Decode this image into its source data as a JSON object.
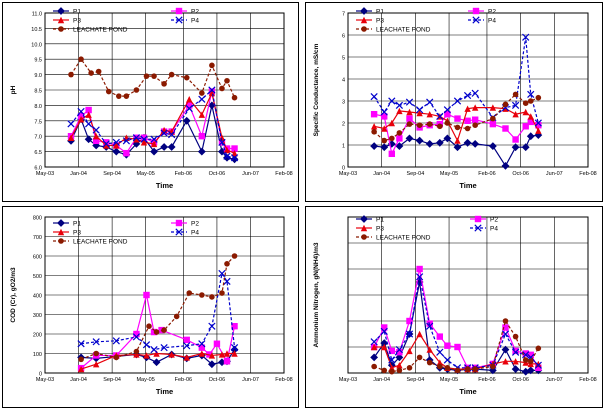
{
  "chart_data": [
    {
      "type": "line",
      "ylabel": "pH",
      "xlabel": "Time",
      "ylim": [
        6.0,
        11.0
      ],
      "yticks": [
        "6.0",
        "6.5",
        "7.0",
        "7.5",
        "8.0",
        "8.5",
        "9.0",
        "9.5",
        "10.0",
        "10.5",
        "11.0"
      ],
      "xticks": [
        "May-03",
        "Jan-04",
        "Sep-04",
        "May-05",
        "Feb-06",
        "Oct-06",
        "Jun-07",
        "Feb-08"
      ],
      "legend": [
        "P1",
        "P2",
        "P3",
        "P4",
        "LEACHATE POND"
      ],
      "series": [
        {
          "name": "P1",
          "color": "#000080",
          "marker": "diamond",
          "line": "solid",
          "x": [
            2003.85,
            2004.05,
            2004.2,
            2004.35,
            2004.55,
            2004.75,
            2004.95,
            2005.15,
            2005.3,
            2005.5,
            2005.7,
            2005.85,
            2006.15,
            2006.45,
            2006.65,
            2006.85,
            2006.95,
            2007.1
          ],
          "y": [
            6.85,
            7.55,
            6.9,
            6.7,
            6.65,
            6.5,
            6.4,
            6.75,
            6.95,
            6.5,
            6.65,
            6.65,
            7.5,
            6.5,
            8.0,
            6.5,
            6.3,
            6.25
          ]
        },
        {
          "name": "P2",
          "color": "#ff00ff",
          "marker": "square",
          "line": "solid",
          "x": [
            2003.85,
            2004.05,
            2004.2,
            2004.35,
            2004.55,
            2004.75,
            2004.95,
            2005.15,
            2005.3,
            2005.5,
            2005.7,
            2005.85,
            2006.2,
            2006.45,
            2006.65,
            2006.85,
            2006.95,
            2007.1
          ],
          "y": [
            7.0,
            7.65,
            7.85,
            6.85,
            6.8,
            6.7,
            6.45,
            6.95,
            6.95,
            6.8,
            7.15,
            7.15,
            8.0,
            7.0,
            8.45,
            6.8,
            6.6,
            6.6
          ]
        },
        {
          "name": "P3",
          "color": "#e8000b",
          "marker": "triangle",
          "line": "solid",
          "x": [
            2003.85,
            2004.05,
            2004.2,
            2004.35,
            2004.55,
            2004.75,
            2004.95,
            2005.15,
            2005.3,
            2005.5,
            2005.7,
            2005.85,
            2006.2,
            2006.45,
            2006.65,
            2006.85,
            2006.95,
            2007.1
          ],
          "y": [
            6.95,
            7.55,
            7.7,
            7.0,
            6.7,
            6.7,
            6.95,
            6.9,
            6.8,
            6.75,
            7.2,
            7.15,
            8.2,
            7.7,
            8.4,
            6.95,
            6.55,
            6.45
          ]
        },
        {
          "name": "P4",
          "color": "#0000cc",
          "marker": "x",
          "line": "dashed",
          "x": [
            2003.85,
            2004.05,
            2004.2,
            2004.35,
            2004.55,
            2004.75,
            2004.95,
            2005.15,
            2005.3,
            2005.5,
            2005.7,
            2005.85,
            2006.2,
            2006.45,
            2006.65,
            2006.85,
            2006.95,
            2007.1
          ],
          "y": [
            7.4,
            7.8,
            7.4,
            7.2,
            6.75,
            6.8,
            6.85,
            6.95,
            6.9,
            6.9,
            7.1,
            7.05,
            7.9,
            8.2,
            8.5,
            6.8,
            6.35,
            6.3
          ]
        },
        {
          "name": "LEACHATE POND",
          "color": "#8b1a00",
          "marker": "circle",
          "line": "dashed",
          "x": [
            2003.85,
            2004.05,
            2004.25,
            2004.4,
            2004.6,
            2004.8,
            2004.95,
            2005.15,
            2005.35,
            2005.5,
            2005.7,
            2005.85,
            2006.15,
            2006.45,
            2006.65,
            2006.85,
            2006.95,
            2007.1
          ],
          "y": [
            9.0,
            9.5,
            9.05,
            9.1,
            8.45,
            8.3,
            8.3,
            8.5,
            8.95,
            8.95,
            8.7,
            9.0,
            8.9,
            8.4,
            9.3,
            8.55,
            8.8,
            8.25
          ]
        }
      ]
    },
    {
      "type": "line",
      "ylabel": "Specific Conductance, mS/cm",
      "xlabel": "Time",
      "ylim": [
        0,
        7
      ],
      "yticks": [
        "0",
        "1",
        "2",
        "3",
        "4",
        "5",
        "6",
        "7"
      ],
      "xticks": [
        "May-03",
        "Jan-04",
        "Sep-04",
        "May-05",
        "Feb-06",
        "Oct-06",
        "Jun-07",
        "Feb-08"
      ],
      "legend": [
        "P1",
        "P2",
        "P3",
        "P4",
        "LEACHATE POND"
      ],
      "series": [
        {
          "name": "P1",
          "color": "#000080",
          "marker": "diamond",
          "line": "solid",
          "x": [
            2003.85,
            2004.05,
            2004.2,
            2004.35,
            2004.55,
            2004.75,
            2004.95,
            2005.15,
            2005.3,
            2005.5,
            2005.7,
            2005.85,
            2006.2,
            2006.45,
            2006.65,
            2006.85,
            2006.95,
            2007.1
          ],
          "y": [
            0.95,
            0.9,
            1.05,
            0.95,
            1.3,
            1.2,
            1.05,
            1.1,
            1.3,
            0.9,
            1.1,
            1.05,
            0.95,
            0.05,
            0.9,
            0.9,
            1.4,
            1.45
          ]
        },
        {
          "name": "P2",
          "color": "#ff00ff",
          "marker": "square",
          "line": "solid",
          "x": [
            2003.85,
            2004.05,
            2004.2,
            2004.35,
            2004.55,
            2004.75,
            2004.95,
            2005.15,
            2005.3,
            2005.5,
            2005.7,
            2005.85,
            2006.2,
            2006.45,
            2006.65,
            2006.85,
            2006.95,
            2007.1
          ],
          "y": [
            2.4,
            2.3,
            0.6,
            1.3,
            2.2,
            1.8,
            1.9,
            1.95,
            2.4,
            2.2,
            2.1,
            2.15,
            1.95,
            1.75,
            1.25,
            1.85,
            2.05,
            1.9
          ]
        },
        {
          "name": "P3",
          "color": "#e8000b",
          "marker": "triangle",
          "line": "solid",
          "x": [
            2003.85,
            2004.05,
            2004.2,
            2004.35,
            2004.55,
            2004.75,
            2004.95,
            2005.15,
            2005.3,
            2005.5,
            2005.7,
            2005.85,
            2006.2,
            2006.45,
            2006.65,
            2006.85,
            2006.95,
            2007.1
          ],
          "y": [
            1.85,
            1.75,
            2.0,
            2.55,
            2.5,
            2.45,
            2.4,
            2.3,
            2.1,
            1.2,
            2.65,
            2.7,
            2.7,
            2.65,
            2.4,
            2.5,
            2.3,
            1.65
          ]
        },
        {
          "name": "P4",
          "color": "#0000cc",
          "marker": "x",
          "line": "dashed",
          "x": [
            2003.85,
            2004.05,
            2004.2,
            2004.35,
            2004.55,
            2004.75,
            2004.95,
            2005.15,
            2005.3,
            2005.5,
            2005.7,
            2005.85,
            2006.2,
            2006.45,
            2006.65,
            2006.85,
            2006.95,
            2007.1
          ],
          "y": [
            3.2,
            2.5,
            3.0,
            2.8,
            2.95,
            2.6,
            2.95,
            2.3,
            2.6,
            3.0,
            3.25,
            3.35,
            2.25,
            2.7,
            2.8,
            5.9,
            3.3,
            2.0
          ]
        },
        {
          "name": "LEACHATE POND",
          "color": "#8b1a00",
          "marker": "circle",
          "line": "dashed",
          "x": [
            2003.85,
            2004.05,
            2004.2,
            2004.35,
            2004.55,
            2004.75,
            2004.95,
            2005.15,
            2005.3,
            2005.5,
            2005.7,
            2005.85,
            2006.2,
            2006.45,
            2006.65,
            2006.85,
            2006.95,
            2007.1
          ],
          "y": [
            1.6,
            1.2,
            1.3,
            1.55,
            1.95,
            1.9,
            1.95,
            1.85,
            2.0,
            1.8,
            1.75,
            1.9,
            2.2,
            2.85,
            3.3,
            2.9,
            3.0,
            3.15
          ]
        }
      ]
    },
    {
      "type": "line",
      "ylabel": "COD (Cr), gO2/m3",
      "xlabel": "Time",
      "ylim": [
        0,
        800
      ],
      "yticks": [
        "0",
        "100",
        "200",
        "300",
        "400",
        "500",
        "600",
        "700",
        "800"
      ],
      "xticks": [
        "May-03",
        "Jan-04",
        "Sep-04",
        "May-05",
        "Feb-06",
        "Oct-06",
        "Jun-07",
        "Feb-08"
      ],
      "legend": [
        "P1",
        "P2",
        "P3",
        "P4",
        "LEACHATE POND"
      ],
      "series": [
        {
          "name": "P1",
          "color": "#000080",
          "marker": "diamond",
          "line": "solid",
          "x": [
            2004.05,
            2004.35,
            2004.75,
            2005.15,
            2005.35,
            2005.55,
            2005.85,
            2006.15,
            2006.45,
            2006.65,
            2006.85,
            2006.95,
            2007.1
          ],
          "y": [
            80,
            75,
            85,
            95,
            80,
            55,
            95,
            75,
            90,
            45,
            55,
            60,
            120
          ]
        },
        {
          "name": "P2",
          "color": "#ff00ff",
          "marker": "square",
          "line": "solid",
          "x": [
            2004.05,
            2004.35,
            2004.75,
            2005.15,
            2005.35,
            2005.5,
            2005.65,
            2006.15,
            2006.45,
            2006.6,
            2006.75,
            2006.95,
            2007.1
          ],
          "y": [
            25,
            90,
            90,
            200,
            400,
            210,
            220,
            170,
            130,
            95,
            150,
            60,
            240
          ]
        },
        {
          "name": "P3",
          "color": "#e8000b",
          "marker": "triangle",
          "line": "solid",
          "x": [
            2004.05,
            2004.35,
            2004.75,
            2005.15,
            2005.35,
            2005.55,
            2005.85,
            2006.15,
            2006.45,
            2006.65,
            2006.85,
            2006.95,
            2007.1
          ],
          "y": [
            20,
            45,
            90,
            95,
            90,
            100,
            95,
            80,
            100,
            90,
            95,
            100,
            100
          ]
        },
        {
          "name": "P4",
          "color": "#0000cc",
          "marker": "x",
          "line": "dashed",
          "x": [
            2004.05,
            2004.35,
            2004.75,
            2005.15,
            2005.35,
            2005.5,
            2005.7,
            2006.15,
            2006.45,
            2006.65,
            2006.85,
            2006.95,
            2007.1
          ],
          "y": [
            150,
            160,
            165,
            185,
            145,
            120,
            130,
            140,
            150,
            240,
            510,
            470,
            130
          ]
        },
        {
          "name": "LEACHATE POND",
          "color": "#8b1a00",
          "marker": "circle",
          "line": "dashed",
          "x": [
            2004.05,
            2004.35,
            2004.75,
            2005.15,
            2005.4,
            2005.55,
            2005.7,
            2005.95,
            2006.2,
            2006.45,
            2006.65,
            2006.85,
            2006.95,
            2007.1
          ],
          "y": [
            70,
            100,
            80,
            110,
            240,
            210,
            220,
            290,
            410,
            400,
            390,
            410,
            560,
            600
          ]
        }
      ]
    },
    {
      "type": "line",
      "ylabel": "Ammonium Nitrogen, gN(NH4)/m3",
      "xlabel": "Time",
      "ylim": [
        0,
        6
      ],
      "yticks": [],
      "xticks": [
        "May-03",
        "Jan-04",
        "Sep-04",
        "May-05",
        "Feb-06",
        "Oct-06",
        "Jun-07",
        "Feb-08"
      ],
      "legend": [
        "P1",
        "P2",
        "P3",
        "P4",
        "LEACHATE POND"
      ],
      "series": [
        {
          "name": "P1",
          "color": "#000080",
          "marker": "diamond",
          "line": "solid",
          "x": [
            2003.85,
            2004.05,
            2004.2,
            2004.35,
            2004.55,
            2004.75,
            2004.95,
            2005.15,
            2005.3,
            2005.5,
            2005.7,
            2005.85,
            2006.2,
            2006.45,
            2006.65,
            2006.85,
            2006.95,
            2007.1
          ],
          "y": [
            0.6,
            1.15,
            0.3,
            0.6,
            1.5,
            3.5,
            0.5,
            0.2,
            0.15,
            0.1,
            0.15,
            0.15,
            0.1,
            0.9,
            0.15,
            0.05,
            0.1,
            0.1
          ]
        },
        {
          "name": "P2",
          "color": "#ff00ff",
          "marker": "square",
          "line": "solid",
          "x": [
            2003.85,
            2004.05,
            2004.2,
            2004.35,
            2004.55,
            2004.75,
            2004.95,
            2005.15,
            2005.3,
            2005.5,
            2005.7,
            2005.85,
            2006.2,
            2006.45,
            2006.65,
            2006.85,
            2006.95,
            2007.1
          ],
          "y": [
            1.0,
            1.75,
            0.85,
            0.8,
            2.0,
            4.0,
            1.9,
            1.4,
            1.05,
            1.0,
            0.2,
            0.2,
            0.35,
            1.75,
            0.85,
            0.75,
            0.7,
            0.2
          ]
        },
        {
          "name": "P3",
          "color": "#e8000b",
          "marker": "triangle",
          "line": "solid",
          "x": [
            2003.85,
            2004.05,
            2004.2,
            2004.35,
            2004.55,
            2004.75,
            2004.95,
            2005.15,
            2005.3,
            2005.5,
            2005.7,
            2005.85,
            2006.2,
            2006.45,
            2006.65,
            2006.85,
            2006.95,
            2007.1
          ],
          "y": [
            1.0,
            1.0,
            0.2,
            0.3,
            0.85,
            1.5,
            0.9,
            0.4,
            0.2,
            0.15,
            0.15,
            0.15,
            0.35,
            0.45,
            0.45,
            0.4,
            0.35,
            0.35
          ]
        },
        {
          "name": "P4",
          "color": "#0000cc",
          "marker": "x",
          "line": "dashed",
          "x": [
            2003.85,
            2004.05,
            2004.2,
            2004.35,
            2004.55,
            2004.75,
            2004.95,
            2005.15,
            2005.3,
            2005.5,
            2005.7,
            2005.85,
            2006.2,
            2006.45,
            2006.65,
            2006.85,
            2006.95,
            2007.1
          ],
          "y": [
            1.2,
            1.6,
            0.5,
            0.9,
            1.5,
            3.7,
            1.8,
            0.8,
            0.5,
            0.2,
            0.2,
            0.2,
            0.3,
            1.5,
            0.8,
            0.7,
            0.6,
            0.3
          ]
        },
        {
          "name": "LEACHATE POND",
          "color": "#8b1a00",
          "marker": "circle",
          "line": "dashed",
          "x": [
            2003.85,
            2004.05,
            2004.2,
            2004.35,
            2004.55,
            2004.75,
            2004.95,
            2005.15,
            2005.3,
            2005.5,
            2005.7,
            2005.85,
            2006.2,
            2006.45,
            2006.65,
            2006.85,
            2006.95,
            2007.1
          ],
          "y": [
            0.25,
            0.1,
            0.05,
            0.1,
            0.2,
            0.6,
            0.4,
            0.25,
            0.2,
            0.1,
            0.15,
            0.15,
            0.25,
            2.0,
            1.4,
            0.5,
            0.45,
            0.95
          ]
        }
      ]
    }
  ]
}
